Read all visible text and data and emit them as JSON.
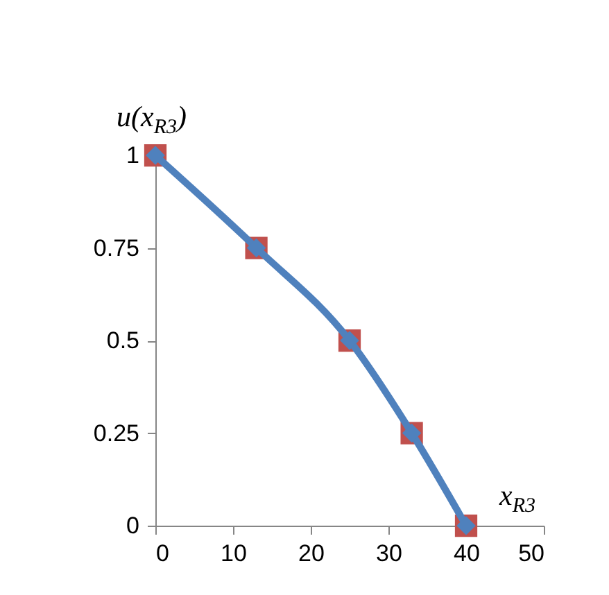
{
  "chart_data": {
    "type": "line",
    "xlabel": "x$_{R3}$",
    "ylabel": "u(x$_{R3}$)",
    "x": [
      0,
      13,
      25,
      33,
      40
    ],
    "series": [
      {
        "type": "scatter",
        "color": "#c0504d",
        "marker": "square",
        "values": [
          1,
          0.75,
          0.5,
          0.25,
          0
        ]
      },
      {
        "color": "#4f81bd",
        "marker": "diamond",
        "values": [
          1,
          0.75,
          0.5,
          0.25,
          0
        ]
      }
    ],
    "xlim": [
      0,
      50
    ],
    "xticks": [
      0,
      10,
      20,
      30,
      40,
      50
    ],
    "ylim": [
      0,
      1
    ],
    "yticks": [
      0,
      0.25,
      0.5,
      0.75,
      1
    ],
    "grid": false
  }
}
